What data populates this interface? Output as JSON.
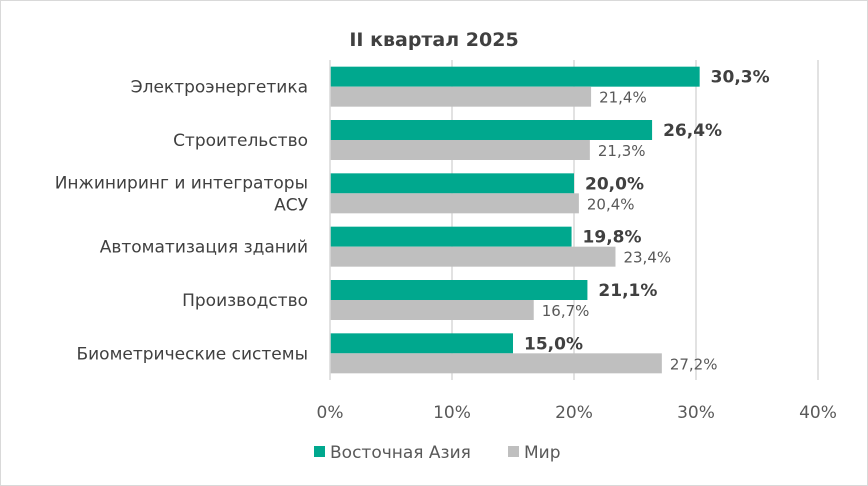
{
  "chart_data": {
    "type": "bar",
    "orientation": "horizontal",
    "title": "II квартал 2025",
    "categories": [
      "Электроэнергетика",
      "Строительство",
      "Инжиниринг и интеграторы АСУ",
      "Автоматизация зданий",
      "Производство",
      "Биометрические системы"
    ],
    "category_lines": [
      [
        "Электроэнергетика"
      ],
      [
        "Строительство"
      ],
      [
        "Инжиниринг и интеграторы",
        "АСУ"
      ],
      [
        "Автоматизация зданий"
      ],
      [
        "Производство"
      ],
      [
        "Биометрические системы"
      ]
    ],
    "series": [
      {
        "name": "Восточная Азия",
        "color": "#00A88E",
        "values": [
          30.3,
          26.4,
          20.0,
          19.8,
          21.1,
          15.0
        ],
        "labels": [
          "30,3%",
          "26,4%",
          "20,0%",
          "19,8%",
          "21,1%",
          "15,0%"
        ]
      },
      {
        "name": "Мир",
        "color": "#BFBFBF",
        "values": [
          21.4,
          21.3,
          20.4,
          23.4,
          16.7,
          27.2
        ],
        "labels": [
          "21,4%",
          "21,3%",
          "20,4%",
          "23,4%",
          "16,7%",
          "27,2%"
        ]
      }
    ],
    "xlim": [
      0,
      40
    ],
    "xticks": [
      0,
      10,
      20,
      30,
      40
    ],
    "xtick_labels": [
      "0%",
      "10%",
      "20%",
      "30%",
      "40%"
    ],
    "grid": true,
    "legend": "bottom"
  }
}
